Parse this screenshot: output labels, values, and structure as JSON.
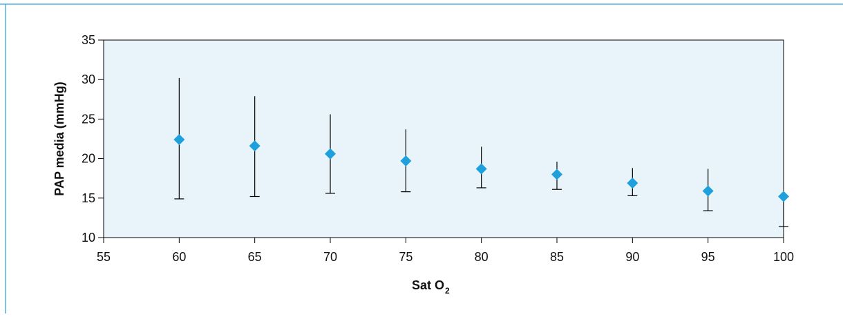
{
  "chart_data": {
    "type": "scatter",
    "xlabel": "Sat O",
    "xlabel_subscript": "2",
    "ylabel": "PAP media (mmHg)",
    "xlim": [
      55,
      100
    ],
    "ylim": [
      10,
      35
    ],
    "xticks": [
      55,
      60,
      65,
      70,
      75,
      80,
      85,
      90,
      95,
      100
    ],
    "yticks": [
      10,
      15,
      20,
      25,
      30,
      35
    ],
    "grid": false,
    "plot_background": "#e8f4fa",
    "marker_color": "#1ea0dc",
    "marker": "diamond",
    "series": [
      {
        "x": [
          60,
          65,
          70,
          75,
          80,
          85,
          90,
          95,
          100
        ],
        "y": [
          22.4,
          21.6,
          20.6,
          19.7,
          18.7,
          18.0,
          16.9,
          15.9,
          15.2
        ],
        "error_low": [
          14.9,
          15.2,
          15.6,
          15.8,
          16.3,
          16.1,
          15.3,
          13.4,
          11.4
        ],
        "error_high": [
          30.2,
          27.9,
          25.6,
          23.7,
          21.5,
          19.6,
          18.8,
          18.7,
          15.2
        ]
      }
    ]
  },
  "frame_color": "#4db3e0"
}
